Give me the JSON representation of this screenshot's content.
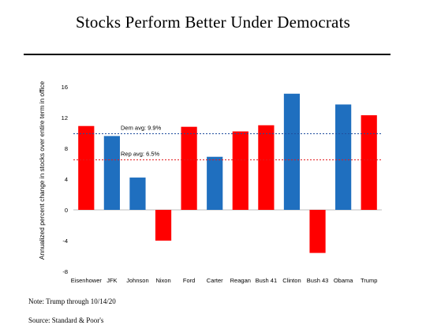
{
  "header": {
    "title": "Stocks Perform Better Under Democrats"
  },
  "notes": {
    "note": "Note: Trump through 10/14/20",
    "source": "Source: Standard & Poor's"
  },
  "colors": {
    "democrat": "#1f6fbf",
    "republican": "#ff0000",
    "dem_line": "#1f4e9e",
    "rep_line": "#e31a1c"
  },
  "chart_data": {
    "type": "bar",
    "categories": [
      "Eisenhower",
      "JFK",
      "Johnson",
      "Nixon",
      "Ford",
      "Carter",
      "Reagan",
      "Bush 41",
      "Clinton",
      "Bush 43",
      "Obama",
      "Trump"
    ],
    "values": [
      10.9,
      9.6,
      4.2,
      -4.0,
      10.8,
      6.9,
      10.2,
      11.0,
      15.1,
      -5.6,
      13.7,
      12.3
    ],
    "party": [
      "R",
      "D",
      "D",
      "R",
      "R",
      "D",
      "R",
      "R",
      "D",
      "R",
      "D",
      "R"
    ],
    "title": "Stocks Perform Better Under Democrats",
    "xlabel": "",
    "ylabel": "Annualized percent change in stocks over entire term in office",
    "ylim": [
      -8,
      16
    ],
    "yticks": [
      -8,
      -4,
      0,
      4,
      8,
      12,
      16
    ],
    "grid": false,
    "reference_lines": [
      {
        "label": "Dem avg: 9.9%",
        "value": 9.9,
        "party": "D"
      },
      {
        "label": "Rep avg: 6.5%",
        "value": 6.5,
        "party": "R"
      }
    ]
  }
}
